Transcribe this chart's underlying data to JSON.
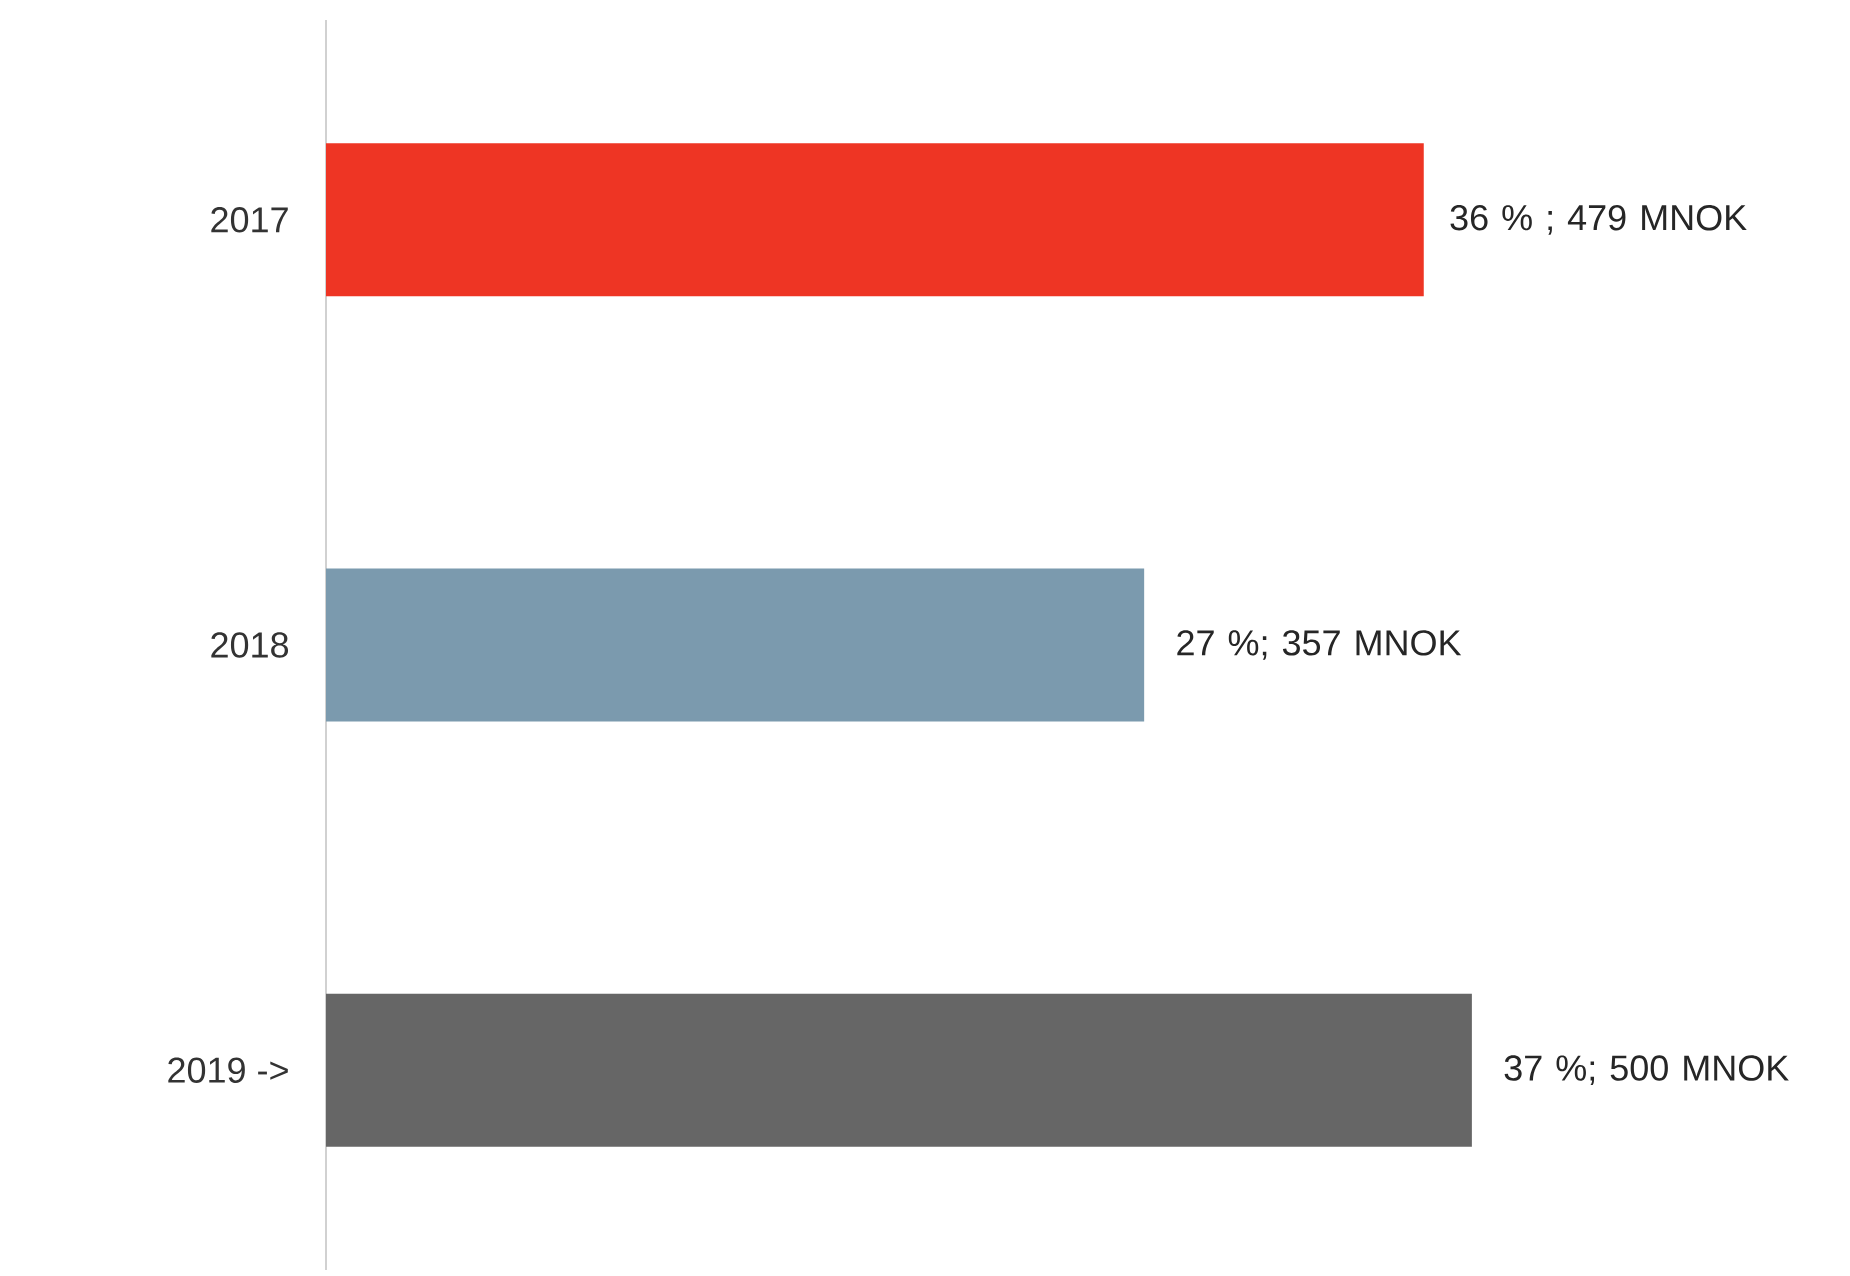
{
  "chart_data": {
    "type": "bar",
    "orientation": "horizontal",
    "categories": [
      "2017",
      "2018",
      "2019 ->"
    ],
    "values": [
      479,
      357,
      500
    ],
    "colors": [
      "#ee3524",
      "#7b9aae",
      "#666666"
    ],
    "value_labels": [
      "36  % ; 479 MNOK",
      "27 %; 357 MNOK",
      "37 %; 500 MNOK"
    ]
  }
}
